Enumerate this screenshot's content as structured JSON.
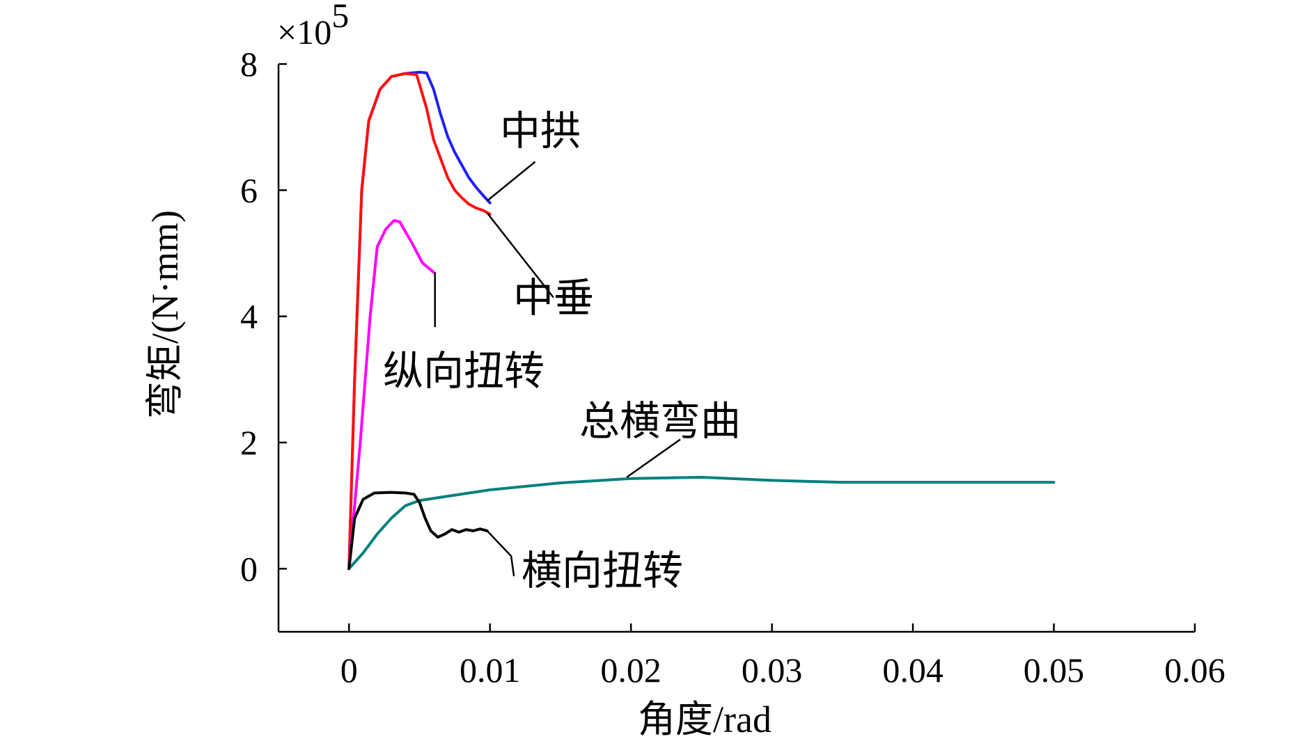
{
  "chart_data": {
    "type": "line",
    "title": "",
    "xlabel": "角度/rad",
    "ylabel": "弯矩/(N·mm)",
    "y_multiplier": "×10",
    "y_multiplier_exp": "5",
    "xlim": [
      -0.005,
      0.06
    ],
    "ylim": [
      -1,
      8
    ],
    "x_ticks": [
      0,
      0.01,
      0.02,
      0.03,
      0.04,
      0.05,
      0.06
    ],
    "x_tick_labels": [
      "0",
      "0.01",
      "0.02",
      "0.03",
      "0.04",
      "0.05",
      "0.06"
    ],
    "y_ticks": [
      0,
      2,
      4,
      6,
      8
    ],
    "y_tick_labels": [
      "0",
      "2",
      "4",
      "6",
      "8"
    ],
    "grid": false,
    "series": [
      {
        "name": "中拱",
        "color": "#1f1fff",
        "x": [
          0,
          0.0004,
          0.0009,
          0.0014,
          0.0022,
          0.003,
          0.004,
          0.005,
          0.0055,
          0.006,
          0.0065,
          0.007,
          0.0075,
          0.008,
          0.0085,
          0.009,
          0.0095,
          0.01
        ],
        "y": [
          0,
          3.0,
          6.0,
          7.1,
          7.6,
          7.8,
          7.85,
          7.87,
          7.86,
          7.6,
          7.2,
          6.85,
          6.6,
          6.4,
          6.2,
          6.05,
          5.92,
          5.8
        ]
      },
      {
        "name": "中垂",
        "color": "#ff1010",
        "x": [
          0,
          0.0004,
          0.0009,
          0.0014,
          0.0022,
          0.003,
          0.004,
          0.0048,
          0.0055,
          0.006,
          0.0065,
          0.007,
          0.0075,
          0.008,
          0.0085,
          0.009,
          0.0095,
          0.01
        ],
        "y": [
          0,
          3.0,
          6.0,
          7.1,
          7.6,
          7.8,
          7.85,
          7.83,
          7.3,
          6.8,
          6.5,
          6.2,
          6.0,
          5.88,
          5.78,
          5.72,
          5.68,
          5.62
        ]
      },
      {
        "name": "纵向扭转",
        "color": "#ff00ff",
        "x": [
          0,
          0.0008,
          0.0015,
          0.002,
          0.0026,
          0.0032,
          0.0036,
          0.0045,
          0.0052,
          0.006
        ],
        "y": [
          0,
          2.0,
          4.0,
          5.1,
          5.38,
          5.52,
          5.5,
          5.15,
          4.85,
          4.7
        ]
      },
      {
        "name": "总横弯曲",
        "color": "#007f7f",
        "x": [
          0,
          0.001,
          0.002,
          0.003,
          0.004,
          0.005,
          0.007,
          0.01,
          0.015,
          0.02,
          0.025,
          0.03,
          0.035,
          0.04,
          0.045,
          0.05
        ],
        "y": [
          0,
          0.25,
          0.55,
          0.8,
          1.0,
          1.08,
          1.15,
          1.25,
          1.36,
          1.43,
          1.45,
          1.4,
          1.37,
          1.37,
          1.37,
          1.37
        ]
      },
      {
        "name": "横向扭转",
        "color": "#000000",
        "x": [
          0,
          0.0004,
          0.001,
          0.0018,
          0.003,
          0.004,
          0.0046,
          0.005,
          0.0054,
          0.0058,
          0.0063,
          0.0068,
          0.0073,
          0.0078,
          0.0083,
          0.0088,
          0.0093,
          0.0098
        ],
        "y": [
          0,
          0.8,
          1.1,
          1.2,
          1.21,
          1.2,
          1.18,
          1.05,
          0.8,
          0.6,
          0.5,
          0.55,
          0.62,
          0.58,
          0.62,
          0.6,
          0.63,
          0.6
        ]
      }
    ],
    "annotations": [
      {
        "text": "中拱",
        "series": "中拱"
      },
      {
        "text": "中垂",
        "series": "中垂"
      },
      {
        "text": "纵向扭转",
        "series": "纵向扭转"
      },
      {
        "text": "总横弯曲",
        "series": "总横弯曲"
      },
      {
        "text": "横向扭转",
        "series": "横向扭转"
      }
    ]
  }
}
